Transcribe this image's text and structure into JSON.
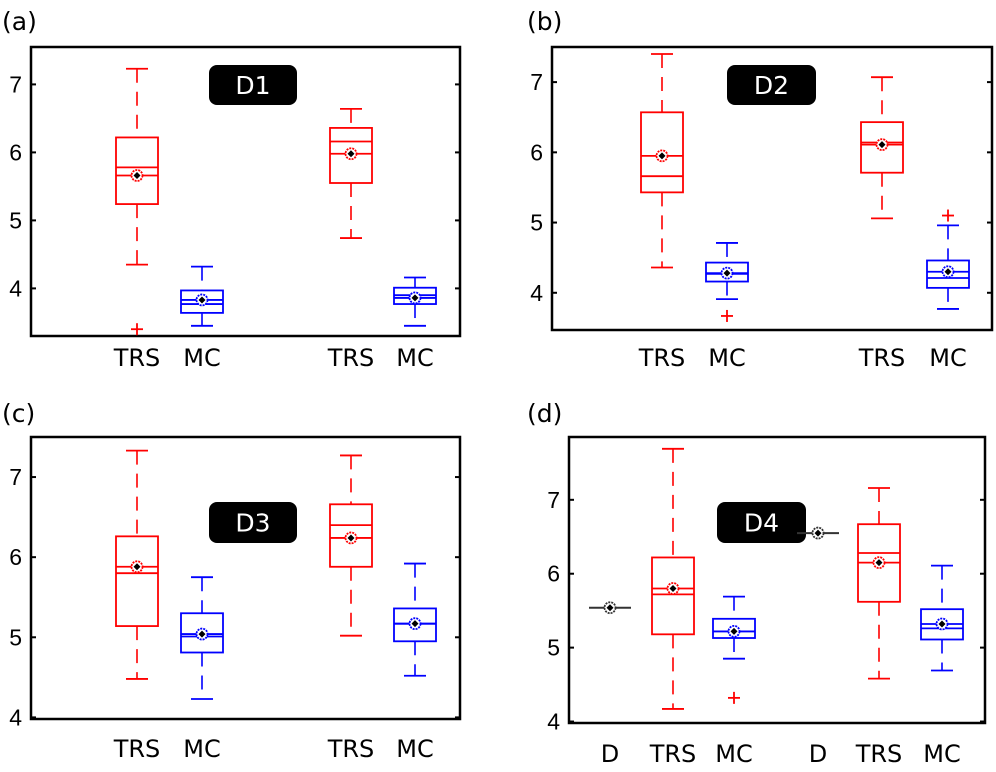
{
  "colors": {
    "trs": "#ff0000",
    "mc": "#0000ff",
    "d": "#333333",
    "frame": "#000000",
    "badge": "#000000",
    "badge_text": "#ffffff"
  },
  "chart_data": [
    {
      "type": "box",
      "panel_label": "(a)",
      "title": "D1",
      "ylim": [
        3.3,
        7.55
      ],
      "yticks": [
        4,
        5,
        6,
        7
      ],
      "categories": [
        "TRS",
        "MC",
        "TRS",
        "MC"
      ],
      "boxes": [
        {
          "label": "TRS",
          "group": "trs",
          "whisker_low": 4.35,
          "q1": 5.24,
          "median": 5.78,
          "mean": 5.66,
          "q3": 6.22,
          "whisker_high": 7.23,
          "outliers": [
            3.4
          ]
        },
        {
          "label": "MC",
          "group": "mc",
          "whisker_low": 3.45,
          "q1": 3.64,
          "median": 3.77,
          "mean": 3.83,
          "q3": 3.97,
          "whisker_high": 4.32,
          "outliers": []
        },
        {
          "label": "TRS",
          "group": "trs",
          "whisker_low": 4.74,
          "q1": 5.55,
          "median": 6.16,
          "mean": 5.98,
          "q3": 6.36,
          "whisker_high": 6.64,
          "outliers": []
        },
        {
          "label": "MC",
          "group": "mc",
          "whisker_low": 3.45,
          "q1": 3.77,
          "median": 3.9,
          "mean": 3.86,
          "q3": 4.01,
          "whisker_high": 4.16,
          "outliers": []
        }
      ]
    },
    {
      "type": "box",
      "panel_label": "(b)",
      "title": "D2",
      "ylim": [
        3.47,
        7.5
      ],
      "yticks": [
        4,
        5,
        6,
        7
      ],
      "categories": [
        "TRS",
        "MC",
        "TRS",
        "MC"
      ],
      "boxes": [
        {
          "label": "TRS",
          "group": "trs",
          "whisker_low": 4.36,
          "q1": 5.43,
          "median": 5.66,
          "mean": 5.95,
          "q3": 6.57,
          "whisker_high": 7.4,
          "outliers": []
        },
        {
          "label": "MC",
          "group": "mc",
          "whisker_low": 3.91,
          "q1": 4.16,
          "median": 4.27,
          "mean": 4.28,
          "q3": 4.43,
          "whisker_high": 4.71,
          "outliers": [
            3.67
          ]
        },
        {
          "label": "TRS",
          "group": "trs",
          "whisker_low": 5.06,
          "q1": 5.71,
          "median": 6.14,
          "mean": 6.11,
          "q3": 6.43,
          "whisker_high": 7.07,
          "outliers": []
        },
        {
          "label": "MC",
          "group": "mc",
          "whisker_low": 3.77,
          "q1": 4.07,
          "median": 4.21,
          "mean": 4.3,
          "q3": 4.46,
          "whisker_high": 4.96,
          "outliers": [
            5.1
          ]
        }
      ]
    },
    {
      "type": "box",
      "panel_label": "(c)",
      "title": "D3",
      "ylim": [
        3.98,
        7.5
      ],
      "yticks": [
        4,
        5,
        6,
        7
      ],
      "categories": [
        "TRS",
        "MC",
        "TRS",
        "MC"
      ],
      "boxes": [
        {
          "label": "TRS",
          "group": "trs",
          "whisker_low": 4.48,
          "q1": 5.14,
          "median": 5.8,
          "mean": 5.88,
          "q3": 6.26,
          "whisker_high": 7.33,
          "outliers": []
        },
        {
          "label": "MC",
          "group": "mc",
          "whisker_low": 4.23,
          "q1": 4.81,
          "median": 5.01,
          "mean": 5.04,
          "q3": 5.3,
          "whisker_high": 5.75,
          "outliers": []
        },
        {
          "label": "TRS",
          "group": "trs",
          "whisker_low": 5.02,
          "q1": 5.88,
          "median": 6.4,
          "mean": 6.24,
          "q3": 6.66,
          "whisker_high": 7.27,
          "outliers": []
        },
        {
          "label": "MC",
          "group": "mc",
          "whisker_low": 4.52,
          "q1": 4.95,
          "median": 5.17,
          "mean": 5.17,
          "q3": 5.36,
          "whisker_high": 5.92,
          "outliers": []
        }
      ]
    },
    {
      "type": "box",
      "panel_label": "(d)",
      "title": "D4",
      "ylim": [
        3.98,
        7.85
      ],
      "yticks": [
        4,
        5,
        6,
        7
      ],
      "categories": [
        "D",
        "TRS",
        "MC",
        "D",
        "TRS",
        "MC"
      ],
      "boxes": [
        {
          "label": "D",
          "group": "d",
          "whisker_low": 5.54,
          "q1": 5.54,
          "median": 5.54,
          "mean": 5.54,
          "q3": 5.54,
          "whisker_high": 5.54,
          "outliers": []
        },
        {
          "label": "TRS",
          "group": "trs",
          "whisker_low": 4.17,
          "q1": 5.18,
          "median": 5.72,
          "mean": 5.8,
          "q3": 6.22,
          "whisker_high": 7.69,
          "outliers": []
        },
        {
          "label": "MC",
          "group": "mc",
          "whisker_low": 4.85,
          "q1": 5.13,
          "median": 5.22,
          "mean": 5.22,
          "q3": 5.39,
          "whisker_high": 5.69,
          "outliers": [
            4.32
          ]
        },
        {
          "label": "D",
          "group": "d",
          "whisker_low": 6.55,
          "q1": 6.55,
          "median": 6.55,
          "mean": 6.55,
          "q3": 6.55,
          "whisker_high": 6.55,
          "outliers": []
        },
        {
          "label": "TRS",
          "group": "trs",
          "whisker_low": 4.58,
          "q1": 5.62,
          "median": 6.28,
          "mean": 6.15,
          "q3": 6.67,
          "whisker_high": 7.16,
          "outliers": []
        },
        {
          "label": "MC",
          "group": "mc",
          "whisker_low": 4.69,
          "q1": 5.11,
          "median": 5.26,
          "mean": 5.32,
          "q3": 5.52,
          "whisker_high": 6.11,
          "outliers": []
        }
      ]
    }
  ]
}
